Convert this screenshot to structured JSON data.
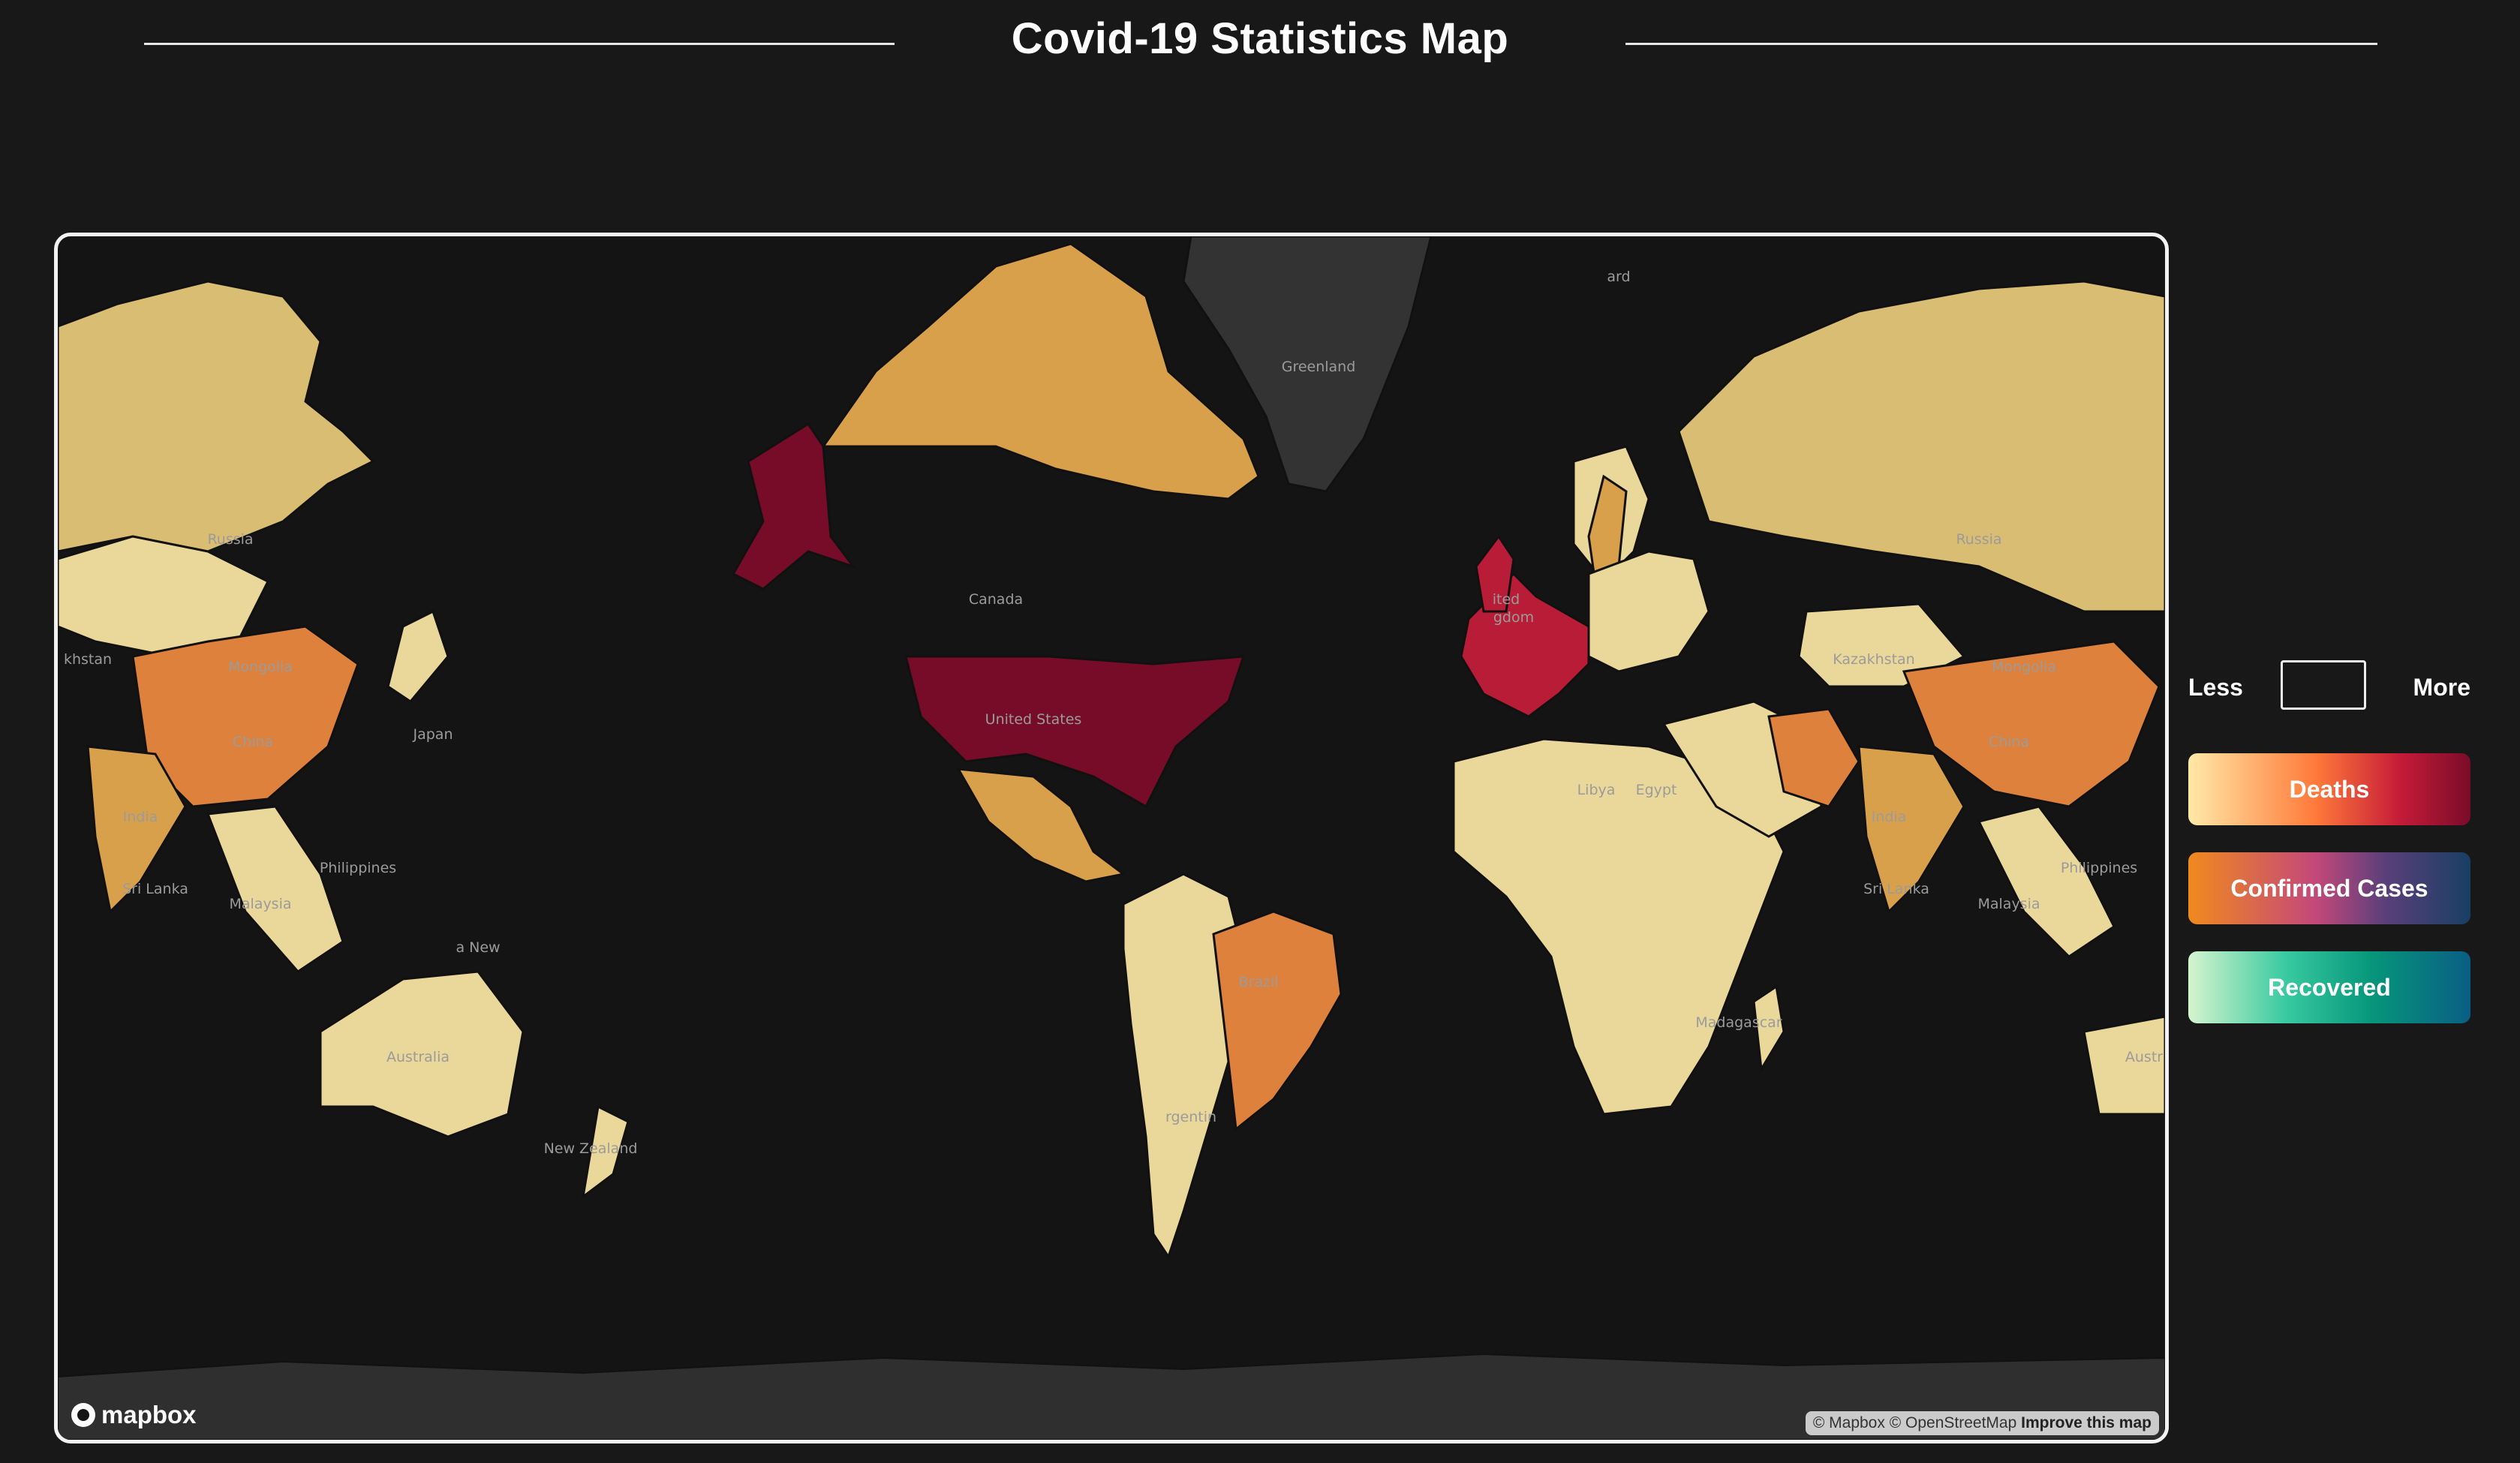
{
  "header": {
    "title": "Covid-19 Statistics Map"
  },
  "map": {
    "labels": {
      "greenland": "Greenland",
      "russia_left": "Russia",
      "russia_right": "Russia",
      "canada": "Canada",
      "united_states": "United States",
      "china_left": "China",
      "china_right": "China",
      "mongolia_left": "Mongolia",
      "mongolia_right": "Mongolia",
      "kazakhstan_left": "khstan",
      "kazakhstan_right": "Kazakhstan",
      "japan": "Japan",
      "india_left": "India",
      "india_right": "India",
      "sri_lanka_left": "Sri Lanka",
      "sri_lanka_right": "Sri Lanka",
      "philippines_left": "Philippines",
      "philippines_right": "Philippines",
      "malaysia_left": "Malaysia",
      "malaysia_right": "Malaysia",
      "papua": "a New",
      "australia_left": "Australia",
      "australia_right": "Austr",
      "new_zealand": "New Zealand",
      "brazil": "Brazil",
      "argentina": "rgentin",
      "madagascar": "Madagascar",
      "libya": "Libya",
      "egypt": "Egypt",
      "svalbard": "ard",
      "uk": "ited",
      "uk2": "gdom"
    },
    "colors": {
      "level_1": "#ead79a",
      "level_2": "#d9bd72",
      "level_3": "#d9a04c",
      "level_4": "#dd813c",
      "level_5": "#b81c36",
      "level_6": "#760c28",
      "no_data": "#333333",
      "ocean": "#141414"
    },
    "logo_text": "mapbox",
    "attribution": "© Mapbox © OpenStreetMap",
    "improve_link": "Improve this map"
  },
  "legend": {
    "less_label": "Less",
    "more_label": "More"
  },
  "buttons": {
    "deaths": "Deaths",
    "confirmed_cases": "Confirmed Cases",
    "recovered": "Recovered"
  }
}
